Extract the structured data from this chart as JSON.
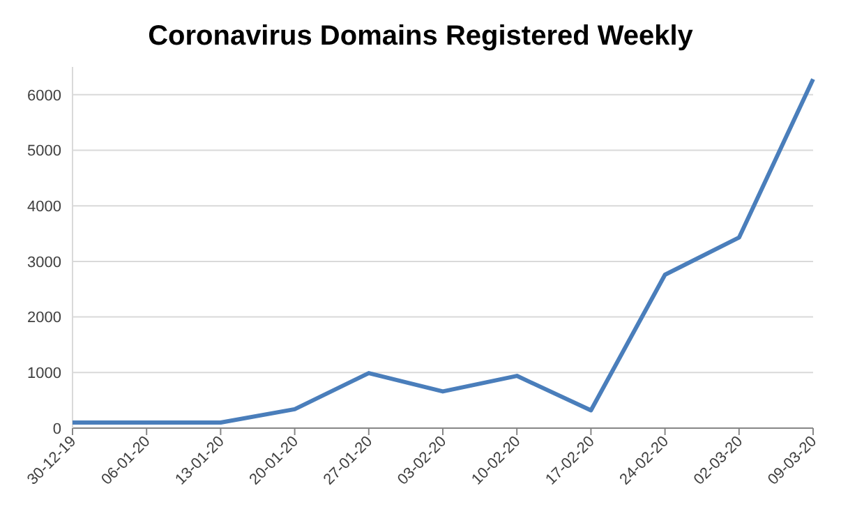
{
  "chart_data": {
    "type": "line",
    "title": "Coronavirus Domains Registered Weekly",
    "categories": [
      "30-12-19",
      "06-01-20",
      "13-01-20",
      "20-01-20",
      "27-01-20",
      "03-02-20",
      "10-02-20",
      "17-02-20",
      "24-02-20",
      "02-03-20",
      "09-03-20"
    ],
    "series": [
      {
        "color": "#4a7ebb",
        "values": [
          100,
          100,
          100,
          340,
          990,
          660,
          940,
          320,
          2760,
          3430,
          6280
        ]
      }
    ],
    "ylim": [
      0,
      6500
    ],
    "yticks": [
      0,
      1000,
      2000,
      3000,
      4000,
      5000,
      6000
    ],
    "grid": "y",
    "marker": "none",
    "line_style": "solid"
  }
}
